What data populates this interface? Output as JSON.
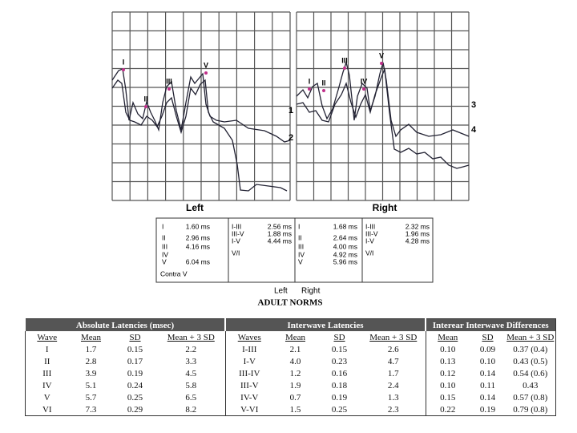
{
  "waveforms": {
    "left": {
      "label": "Left",
      "wave_labels": [
        "I",
        "II",
        "III",
        "V"
      ],
      "channels": [
        "1",
        "2"
      ]
    },
    "right": {
      "label": "Right",
      "wave_labels": [
        "I",
        "II",
        "III",
        "IV",
        "V"
      ],
      "channels": [
        "3",
        "4"
      ]
    }
  },
  "latency_box": {
    "columns": [
      [
        {
          "label": "I",
          "value": "1.60 ms"
        },
        {
          "label": "II",
          "value": "2.96 ms"
        },
        {
          "label": "III",
          "value": "4.16 ms"
        },
        {
          "label": "IV"
        },
        {
          "label": "V",
          "value": "6.04 ms"
        }
      ],
      [
        {
          "label": "I-III",
          "value": "2.56 ms"
        },
        {
          "label": "III-V",
          "value": "1.88 ms"
        },
        {
          "label": "I-V",
          "value": "4.44 ms"
        },
        {
          "label": "V/I"
        }
      ],
      [
        {
          "label": "I",
          "value": "1.68 ms"
        },
        {
          "label": "II",
          "value": "2.64 ms"
        },
        {
          "label": "III",
          "value": "4.00 ms"
        },
        {
          "label": "IV",
          "value": "4.92 ms"
        },
        {
          "label": "V",
          "value": "5.96 ms"
        }
      ],
      [
        {
          "label": "I-III",
          "value": "2.32 ms"
        },
        {
          "label": "III-V",
          "value": "1.96 ms"
        },
        {
          "label": "I-V",
          "value": "4.28 ms"
        },
        {
          "label": "V/I"
        }
      ]
    ],
    "footer": "Contra V",
    "side_labels": [
      "Left",
      "Right"
    ]
  },
  "norms_title": "ADULT NORMS",
  "table": {
    "groups": [
      "Absolute Latencies (msec)",
      "Interwave Latencies",
      "Interear Interwave Differences"
    ],
    "headers": [
      "Wave",
      "Mean",
      "SD",
      "Mean + 3 SD",
      "Waves",
      "Mean",
      "SD",
      "Mean + 3 SD",
      "Mean",
      "SD",
      "Mean + 3 SD"
    ],
    "rows": [
      [
        "I",
        "1.7",
        "0.15",
        "2.2",
        "I-III",
        "2.1",
        "0.15",
        "2.6",
        "0.10",
        "0.09",
        "0.37 (0.4)"
      ],
      [
        "II",
        "2.8",
        "0.17",
        "3.3",
        "I-V",
        "4.0",
        "0.23",
        "4.7",
        "0.13",
        "0.10",
        "0.43 (0.5)"
      ],
      [
        "III",
        "3.9",
        "0.19",
        "4.5",
        "III-IV",
        "1.2",
        "0.16",
        "1.7",
        "0.12",
        "0.14",
        "0.54 (0.6)"
      ],
      [
        "IV",
        "5.1",
        "0.24",
        "5.8",
        "III-V",
        "1.9",
        "0.18",
        "2.4",
        "0.10",
        "0.11",
        "0.43"
      ],
      [
        "V",
        "5.7",
        "0.25",
        "6.5",
        "IV-V",
        "0.7",
        "0.19",
        "1.3",
        "0.15",
        "0.14",
        "0.57 (0.8)"
      ],
      [
        "VI",
        "7.3",
        "0.29",
        "8.2",
        "V-VI",
        "1.5",
        "0.25",
        "2.3",
        "0.22",
        "0.19",
        "0.79 (0.8)"
      ]
    ]
  }
}
